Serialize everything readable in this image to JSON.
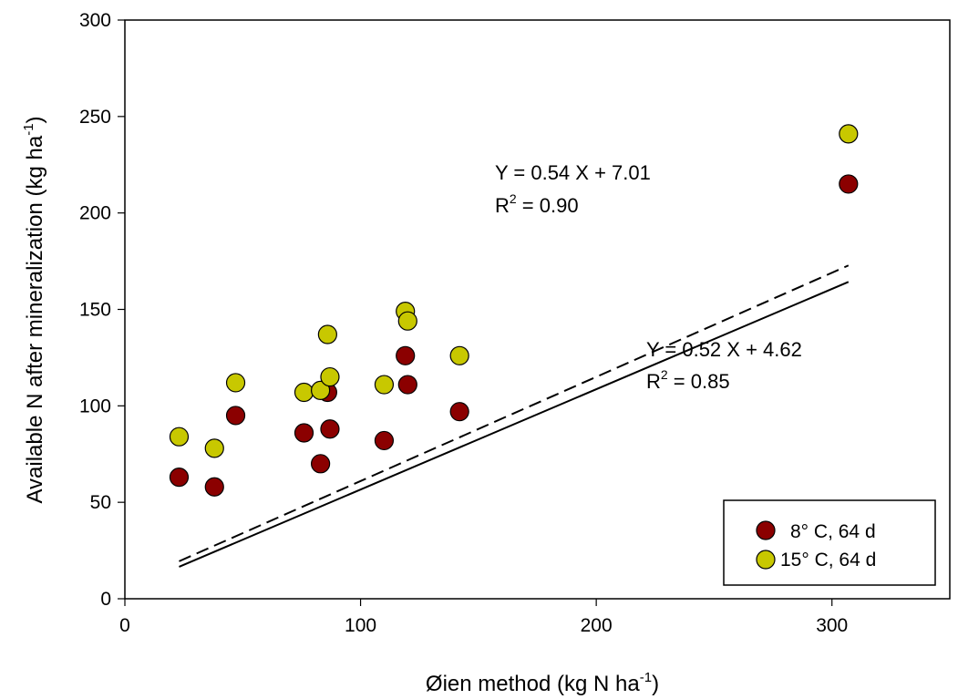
{
  "chart_data": {
    "type": "scatter",
    "xlabel": {
      "main": "Øien method (kg N ha",
      "sup": "-1",
      "tail": ")"
    },
    "ylabel": {
      "main": "Available N after mineralization (kg ha",
      "sup": "-1",
      "tail": ")"
    },
    "xlim": [
      0,
      350
    ],
    "ylim": [
      0,
      300
    ],
    "xticks": [
      0,
      100,
      200,
      300
    ],
    "yticks": [
      0,
      50,
      100,
      150,
      200,
      250,
      300
    ],
    "grid": false,
    "legend_position": "bottom-right",
    "series": [
      {
        "name": "8° C, 64 d",
        "color": "#8B0000",
        "points": [
          [
            23,
            63
          ],
          [
            38,
            58
          ],
          [
            47,
            95
          ],
          [
            76,
            86
          ],
          [
            83,
            70
          ],
          [
            86,
            107
          ],
          [
            87,
            88
          ],
          [
            110,
            82
          ],
          [
            119,
            126
          ],
          [
            120,
            111
          ],
          [
            142,
            97
          ],
          [
            307,
            215
          ]
        ],
        "fit": {
          "slope": 0.52,
          "intercept": 4.62,
          "x_range": [
            23,
            307
          ],
          "style": "solid"
        },
        "equation": {
          "line1": "Y = 0.52 X + 4.62",
          "r2_prefix": "R",
          "r2_sup": "2",
          "r2_value": " = 0.85"
        }
      },
      {
        "name": "15° C, 64 d",
        "color": "#C8C800",
        "points": [
          [
            23,
            84
          ],
          [
            38,
            78
          ],
          [
            47,
            112
          ],
          [
            76,
            107
          ],
          [
            83,
            108
          ],
          [
            86,
            137
          ],
          [
            87,
            115
          ],
          [
            110,
            111
          ],
          [
            119,
            149
          ],
          [
            120,
            144
          ],
          [
            142,
            126
          ],
          [
            307,
            241
          ]
        ],
        "fit": {
          "slope": 0.54,
          "intercept": 7.01,
          "x_range": [
            23,
            307
          ],
          "style": "dashed"
        },
        "equation": {
          "line1": "Y = 0.54 X + 7.01",
          "r2_prefix": "R",
          "r2_sup": "2",
          "r2_value": " = 0.90"
        }
      }
    ]
  }
}
